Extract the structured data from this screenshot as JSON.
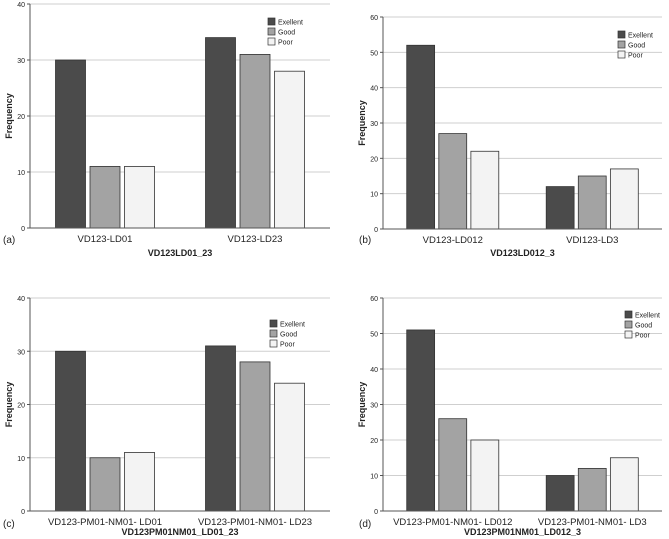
{
  "legend_labels": [
    "Exellent",
    "Good",
    "Poor"
  ],
  "series_colors": [
    "#4b4b4b",
    "#a3a3a3",
    "#f3f3f3"
  ],
  "grid_color": "#cfcfcf",
  "chart_data": [
    {
      "type": "bar",
      "panel_label": "(a)",
      "xlabel": "VD123LD01_23",
      "ylabel": "Frequency",
      "categories": [
        "VD123-LD01",
        "VD123-LD23"
      ],
      "series": [
        {
          "name": "Exellent",
          "values": [
            30,
            34
          ]
        },
        {
          "name": "Good",
          "values": [
            11,
            31
          ]
        },
        {
          "name": "Poor",
          "values": [
            11,
            28
          ]
        }
      ],
      "ylim": [
        0,
        40
      ],
      "yticks": [
        0,
        10,
        20,
        30,
        40
      ],
      "grid": true,
      "legend": "top-right"
    },
    {
      "type": "bar",
      "panel_label": "(b)",
      "xlabel": "VD123LD012_3",
      "ylabel": "Frequency",
      "categories": [
        "VD123-LD012",
        "VDI123-LD3"
      ],
      "series": [
        {
          "name": "Exellent",
          "values": [
            52,
            12
          ]
        },
        {
          "name": "Good",
          "values": [
            27,
            15
          ]
        },
        {
          "name": "Poor",
          "values": [
            22,
            17
          ]
        }
      ],
      "ylim": [
        0,
        60
      ],
      "yticks": [
        0,
        10,
        20,
        30,
        40,
        50,
        60
      ],
      "grid": true,
      "legend": "top-right"
    },
    {
      "type": "bar",
      "panel_label": "(c)",
      "xlabel": "VD123PM01NM01_LD01_23",
      "ylabel": "Frequency",
      "categories": [
        "VD123-PM01-NM01- LD01",
        "VD123-PM01-NM01- LD23"
      ],
      "series": [
        {
          "name": "Exellent",
          "values": [
            30,
            31
          ]
        },
        {
          "name": "Good",
          "values": [
            10,
            28
          ]
        },
        {
          "name": "Poor",
          "values": [
            11,
            24
          ]
        }
      ],
      "ylim": [
        0,
        40
      ],
      "yticks": [
        0,
        10,
        20,
        30,
        40
      ],
      "grid": true,
      "legend": "top-right"
    },
    {
      "type": "bar",
      "panel_label": "(d)",
      "xlabel": "VD123PM01NM01_LD012_3",
      "ylabel": "Frequency",
      "categories": [
        "VD123-PM01-NM01- LD012",
        "VD123-PM01-NM01- LD3"
      ],
      "series": [
        {
          "name": "Exellent",
          "values": [
            51,
            10
          ]
        },
        {
          "name": "Good",
          "values": [
            26,
            12
          ]
        },
        {
          "name": "Poor",
          "values": [
            20,
            15
          ]
        }
      ],
      "ylim": [
        0,
        60
      ],
      "yticks": [
        0,
        10,
        20,
        30,
        40,
        50,
        60
      ],
      "grid": true,
      "legend": "top-right"
    }
  ]
}
